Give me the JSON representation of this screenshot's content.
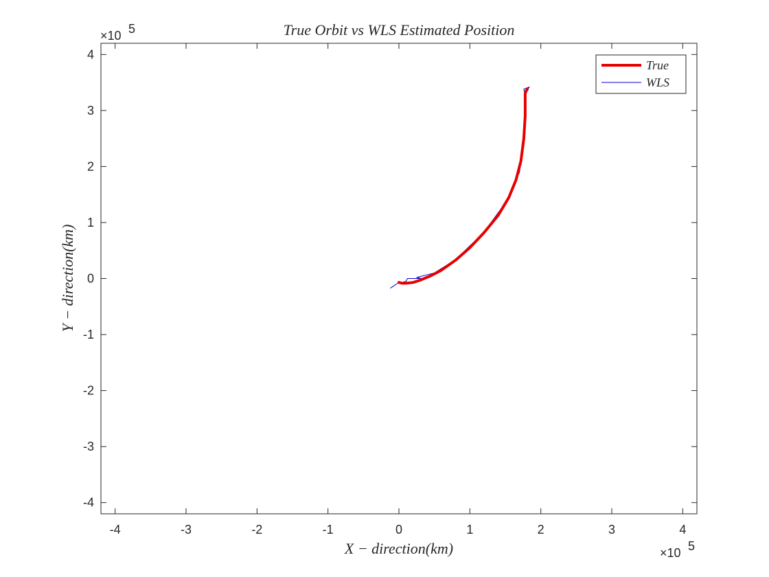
{
  "chart_data": {
    "type": "line",
    "title": "True Orbit vs WLS Estimated Position",
    "xlabel": "X − direction(km)",
    "ylabel": "Y − direction(km)",
    "x_multiplier": "×10",
    "x_multiplier_exp": "5",
    "y_multiplier": "×10",
    "y_multiplier_exp": "5",
    "xlim": [
      -4.2,
      4.2
    ],
    "ylim": [
      -4.2,
      4.2
    ],
    "xticks": [
      -4,
      -3,
      -2,
      -1,
      0,
      1,
      2,
      3,
      4
    ],
    "yticks": [
      -4,
      -3,
      -2,
      -1,
      0,
      1,
      2,
      3,
      4
    ],
    "xtick_labels": [
      "-4",
      "-3",
      "-2",
      "-1",
      "0",
      "1",
      "2",
      "3",
      "4"
    ],
    "ytick_labels": [
      "-4",
      "-3",
      "-2",
      "-1",
      "0",
      "1",
      "2",
      "3",
      "4"
    ],
    "grid": false,
    "legend": "top-right",
    "series": [
      {
        "name": "True",
        "color": "#e60000",
        "points": [
          [
            0.0,
            -0.07
          ],
          [
            0.05,
            -0.085
          ],
          [
            0.1,
            -0.085
          ],
          [
            0.2,
            -0.07
          ],
          [
            0.3,
            -0.03
          ],
          [
            0.45,
            0.05
          ],
          [
            0.6,
            0.15
          ],
          [
            0.8,
            0.33
          ],
          [
            1.0,
            0.55
          ],
          [
            1.2,
            0.82
          ],
          [
            1.4,
            1.13
          ],
          [
            1.55,
            1.45
          ],
          [
            1.65,
            1.76
          ],
          [
            1.72,
            2.1
          ],
          [
            1.76,
            2.5
          ],
          [
            1.78,
            2.9
          ],
          [
            1.78,
            3.15
          ],
          [
            1.78,
            3.3
          ],
          [
            1.79,
            3.34
          ],
          [
            1.81,
            3.38
          ]
        ]
      },
      {
        "name": "WLS",
        "color": "#0000cc",
        "points": [
          [
            -0.12,
            -0.17
          ],
          [
            -0.06,
            -0.12
          ],
          [
            -0.01,
            -0.08
          ],
          [
            0.04,
            -0.07
          ],
          [
            0.1,
            -0.05
          ],
          [
            0.12,
            0.0
          ],
          [
            0.2,
            0.0
          ],
          [
            0.32,
            0.0
          ],
          [
            0.25,
            0.02
          ],
          [
            0.5,
            0.1
          ],
          [
            0.8,
            0.34
          ],
          [
            1.2,
            0.83
          ],
          [
            1.5,
            1.35
          ],
          [
            1.7,
            1.9
          ],
          [
            1.77,
            2.6
          ],
          [
            1.79,
            3.2
          ],
          [
            1.76,
            3.38
          ],
          [
            1.84,
            3.42
          ],
          [
            1.8,
            3.36
          ]
        ]
      }
    ]
  }
}
